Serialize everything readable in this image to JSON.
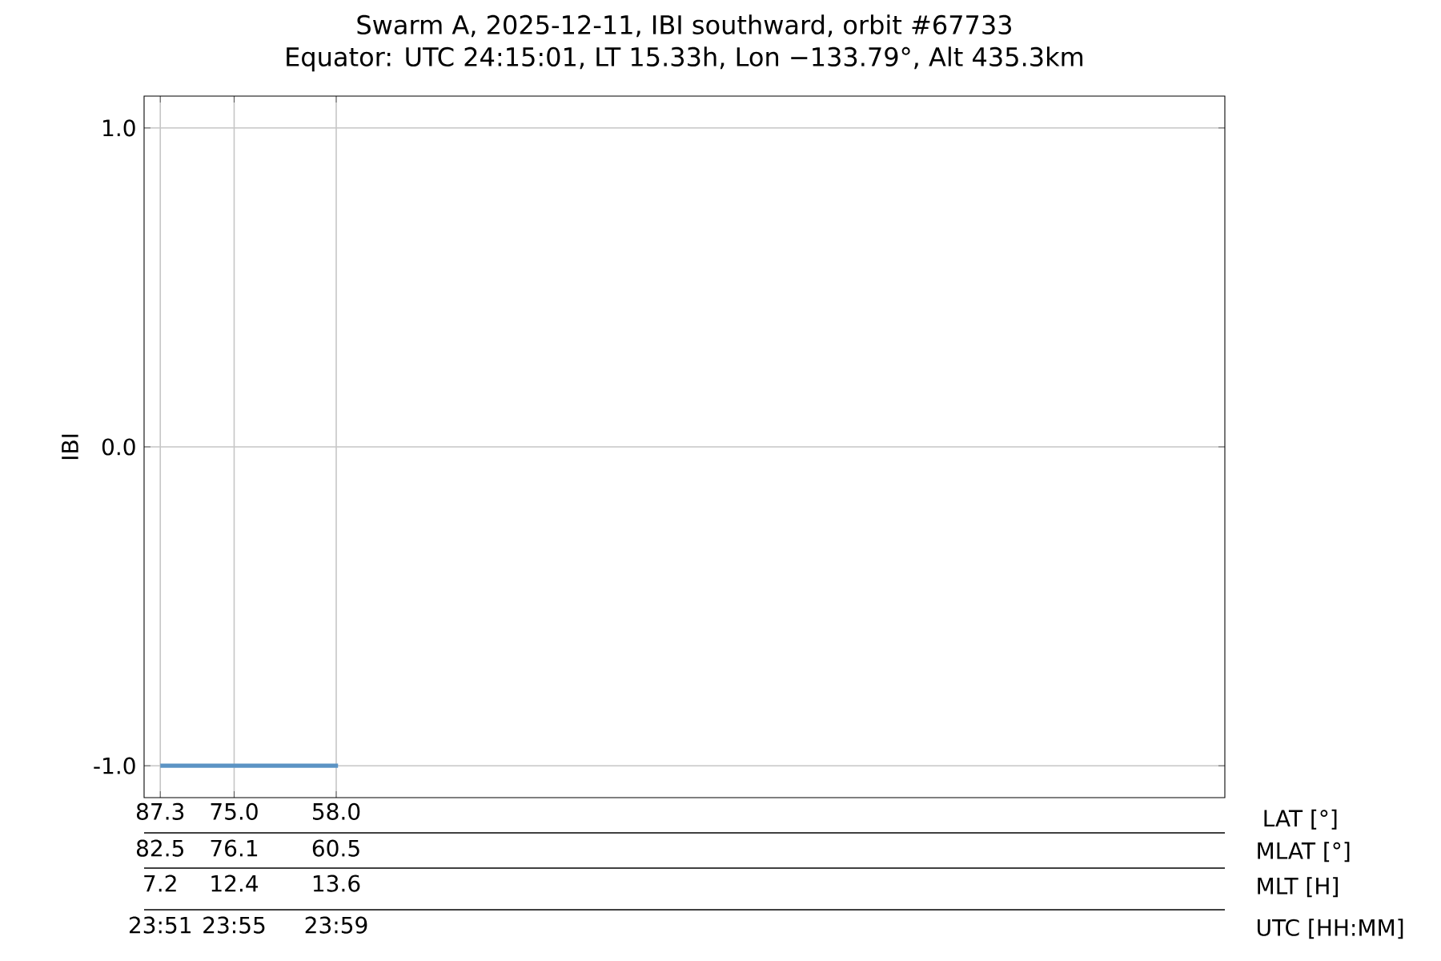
{
  "chart_data": {
    "type": "line",
    "title": "Swarm A, 2025-12-11, IBI southward, orbit #67733",
    "subtitle": "Equator: UTC 24:15:01, LT 15.33h, Lon −133.79°, Alt 435.3km",
    "ylabel": "IBI",
    "xlabel": "LAT [°]",
    "xlim": [
      90,
      -90
    ],
    "xticks": [
      87.3,
      {
        "value": 75,
        "label": "75.0"
      },
      {
        "value": 58,
        "label": "58.0"
      }
    ],
    "ylim": [
      -1.1,
      1.1
    ],
    "yticks": [
      {
        "value": -1,
        "label": "-1.0"
      },
      {
        "value": 0,
        "label": "0.0"
      },
      {
        "value": 1,
        "label": "1.0"
      }
    ],
    "grid": true,
    "annotations": [
      "82.5",
      "76.1",
      "60.5",
      "MLAT [°]",
      "7.2",
      "12.4",
      "13.6",
      "MLT [H]",
      "23:51",
      "23:55",
      "23:59",
      "UTC [HH:MM]"
    ],
    "series": [
      {
        "color": "#5b93c4",
        "x": [
          87.3,
          57.7
        ],
        "values": [
          -1,
          -1
        ]
      }
    ]
  }
}
